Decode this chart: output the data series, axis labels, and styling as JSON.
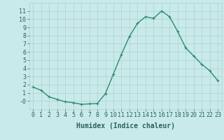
{
  "title": "",
  "xlabel": "Humidex (Indice chaleur)",
  "x_values": [
    0,
    1,
    2,
    3,
    4,
    5,
    6,
    7,
    8,
    9,
    10,
    11,
    12,
    13,
    14,
    15,
    16,
    17,
    18,
    19,
    20,
    21,
    22,
    23
  ],
  "y_values": [
    1.7,
    1.3,
    0.5,
    0.2,
    -0.1,
    -0.2,
    -0.4,
    -0.35,
    -0.3,
    0.9,
    3.3,
    5.7,
    7.9,
    9.5,
    10.3,
    10.1,
    11.0,
    10.3,
    8.5,
    6.5,
    5.5,
    4.5,
    3.7,
    2.5
  ],
  "line_color": "#2e8b6e",
  "marker": "+",
  "marker_color": "#2e8b6e",
  "bg_color": "#c8eaea",
  "grid_color": "#b0d0d0",
  "font_color": "#2e6060",
  "ylim": [
    -1,
    12
  ],
  "yticks": [
    0,
    1,
    2,
    3,
    4,
    5,
    6,
    7,
    8,
    9,
    10,
    11
  ],
  "ytick_labels": [
    "-0",
    "1",
    "2",
    "3",
    "4",
    "5",
    "6",
    "7",
    "8",
    "9",
    "10",
    "11"
  ],
  "xlim": [
    -0.5,
    23.5
  ],
  "xticks": [
    0,
    1,
    2,
    3,
    4,
    5,
    6,
    7,
    8,
    9,
    10,
    11,
    12,
    13,
    14,
    15,
    16,
    17,
    18,
    19,
    20,
    21,
    22,
    23
  ],
  "xlabel_fontsize": 7,
  "tick_fontsize": 6,
  "linewidth": 1.0,
  "markersize": 3
}
